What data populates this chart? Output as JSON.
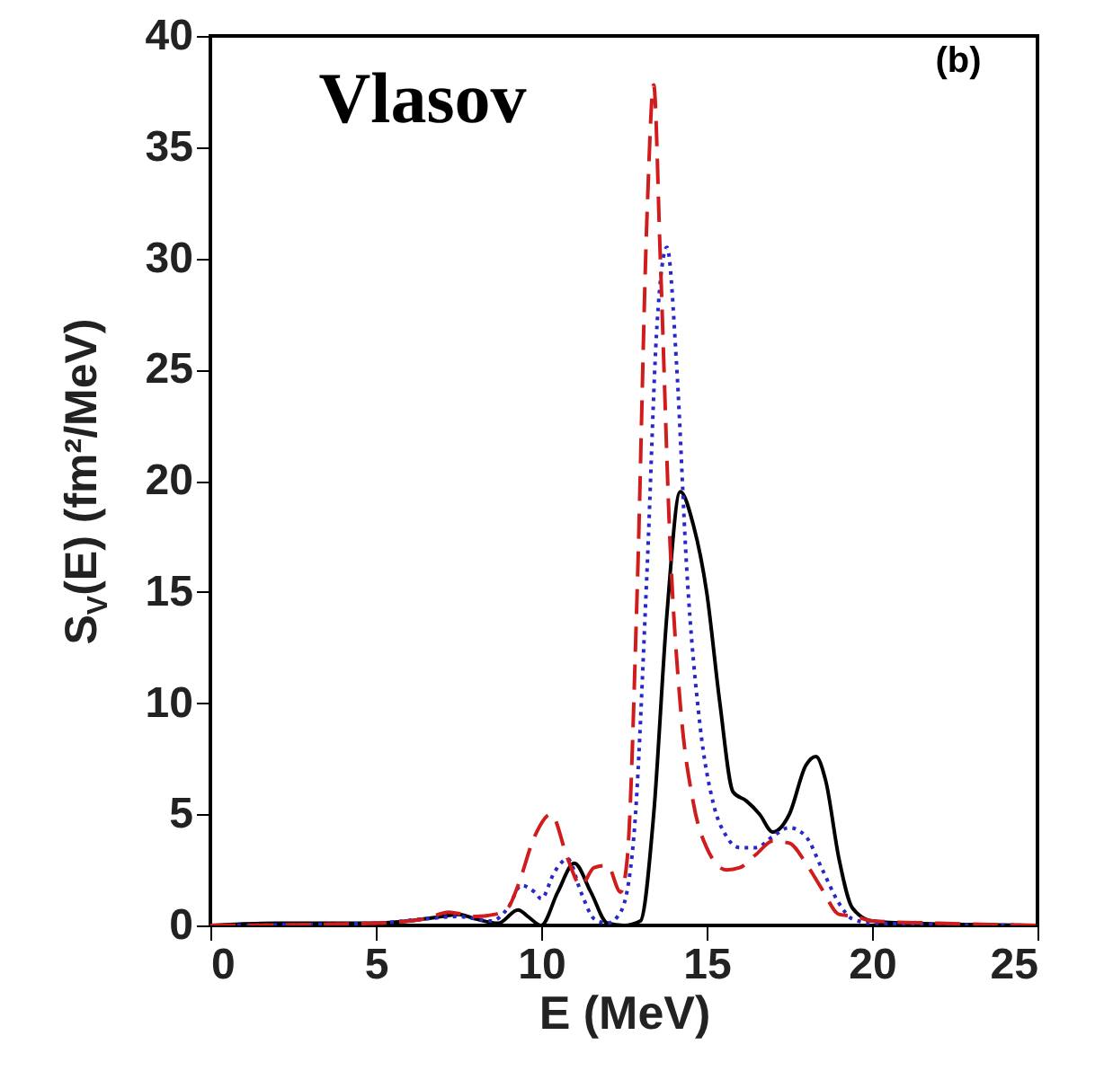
{
  "chart_data": {
    "type": "line",
    "xlabel": "E (MeV)",
    "ylabel": "S$_{V}$(E) (fm²/MeV)",
    "annotations": [
      "Vlasov",
      "(b)"
    ],
    "xlim": [
      0,
      25
    ],
    "xticks": [
      0,
      5,
      10,
      15,
      20,
      25
    ],
    "ylim": [
      0,
      40
    ],
    "yticks": [
      0,
      5,
      10,
      15,
      20,
      25,
      30,
      35,
      40
    ],
    "grid": false,
    "marker": "none",
    "series": [
      {
        "color": "#000000",
        "line_style": "solid",
        "x": [
          0,
          2,
          5,
          6,
          7,
          7.5,
          8,
          8.7,
          9.3,
          9.6,
          10,
          10.5,
          11,
          11.5,
          12,
          12.5,
          13,
          13.4,
          13.8,
          14.2,
          14.6,
          15,
          15.4,
          15.8,
          16.2,
          16.6,
          17,
          17.5,
          18,
          18.3,
          18.6,
          19,
          19.4,
          20,
          21,
          25
        ],
        "values": [
          0,
          0.1,
          0.1,
          0.2,
          0.4,
          0.5,
          0.3,
          0.1,
          0.7,
          0.4,
          0,
          1.5,
          2.8,
          1.5,
          0.1,
          0,
          0.2,
          5,
          14,
          19.5,
          18,
          15,
          10,
          6,
          5.6,
          5,
          4.2,
          5,
          7.2,
          7.6,
          6.5,
          3,
          0.8,
          0.2,
          0.1,
          0
        ]
      },
      {
        "color": "#2828c8",
        "line_style": "dotted",
        "x": [
          0,
          5,
          6.5,
          7.5,
          8.5,
          9,
          9.4,
          9.8,
          10,
          10.4,
          10.8,
          11.2,
          11.6,
          12,
          12.4,
          12.8,
          13.2,
          13.5,
          13.8,
          14.1,
          14.4,
          14.8,
          15.2,
          15.6,
          16,
          16.5,
          17,
          17.5,
          18,
          18.5,
          19,
          19.4,
          20,
          25
        ],
        "values": [
          0,
          0.1,
          0.3,
          0.4,
          0.2,
          0.8,
          1.8,
          1.5,
          1.2,
          2.4,
          3,
          1.5,
          0.3,
          0.1,
          0.6,
          4,
          16,
          27,
          30.5,
          25,
          16,
          9,
          5.5,
          4,
          3.5,
          3.5,
          4,
          4.4,
          4,
          2.5,
          1,
          0.3,
          0.1,
          0
        ]
      },
      {
        "color": "#d01c1c",
        "line_style": "dashed",
        "x": [
          0,
          5,
          6.5,
          7.2,
          8,
          8.6,
          9,
          9.3,
          9.8,
          10.3,
          10.8,
          11.2,
          11.6,
          12,
          12.4,
          12.6,
          12.9,
          13.2,
          13.4,
          13.6,
          13.9,
          14.2,
          14.6,
          15,
          15.6,
          16,
          16.5,
          17,
          17.5,
          18,
          18.5,
          19,
          19.5,
          20,
          22,
          25
        ],
        "values": [
          0,
          0.1,
          0.3,
          0.6,
          0.4,
          0.5,
          0.8,
          1.8,
          4,
          5,
          3,
          1.8,
          2.6,
          2.7,
          1.5,
          3,
          15,
          32,
          37.8,
          30,
          17,
          10,
          5.5,
          3.5,
          2.5,
          2.6,
          3.2,
          3.8,
          3.7,
          2.8,
          1.6,
          0.5,
          0.4,
          0.2,
          0.1,
          0
        ]
      }
    ]
  }
}
